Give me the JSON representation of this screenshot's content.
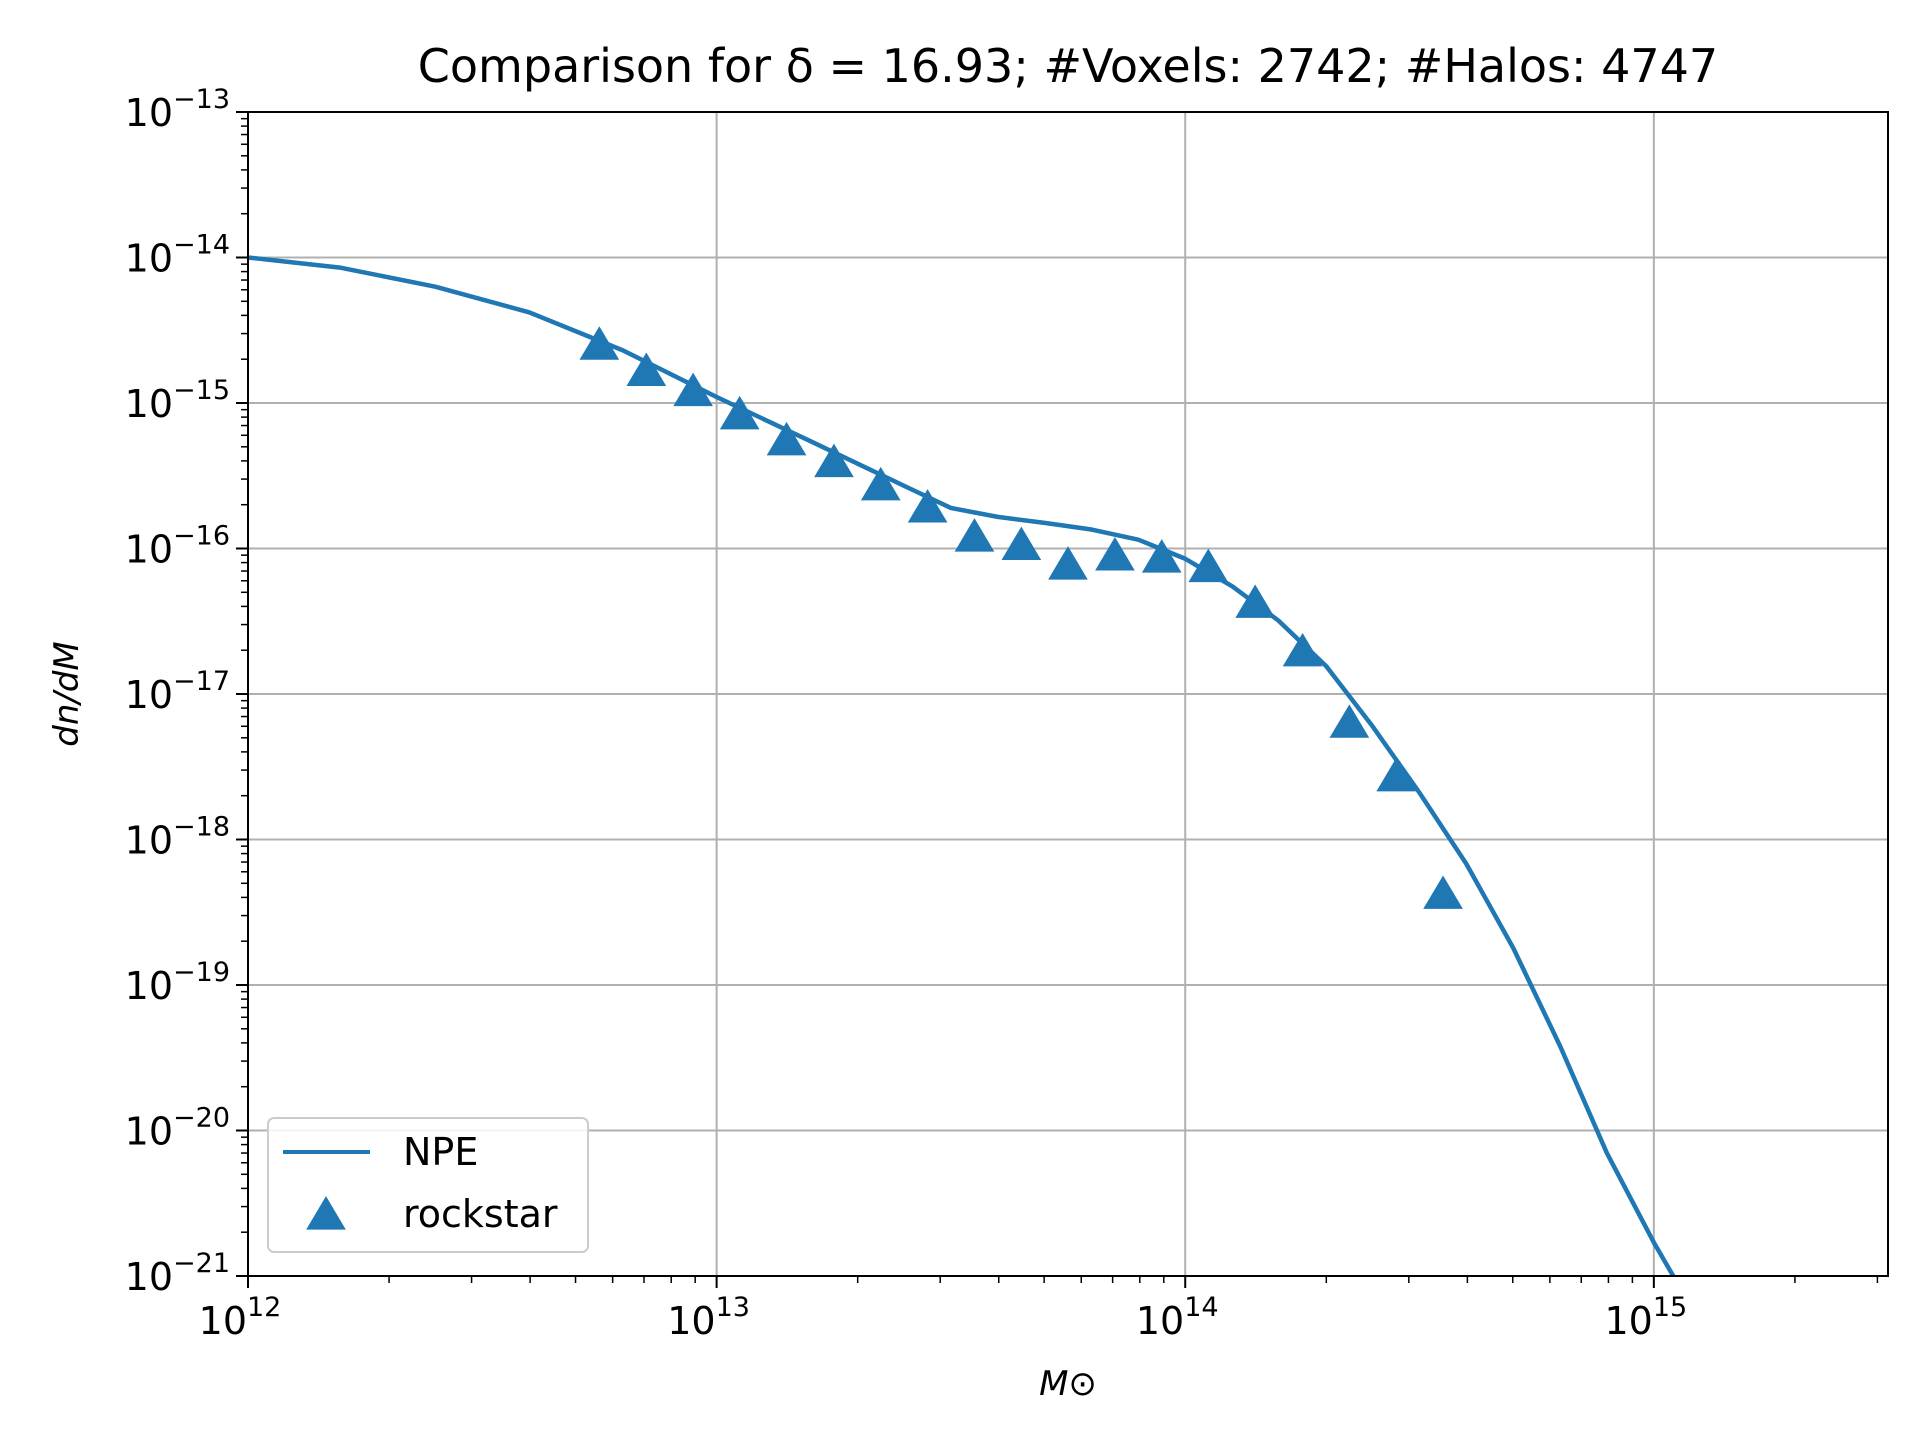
{
  "chart_data": {
    "type": "line",
    "title": "Comparison for δ = 16.93; #Voxels: 2742; #Halos: 4747",
    "xlabel": "M⊙",
    "ylabel": "dn/dM",
    "xscale": "log",
    "yscale": "log",
    "xlim": [
      1000000000000.0,
      3160000000000000.0
    ],
    "ylim": [
      1e-21,
      1e-13
    ],
    "grid": true,
    "legend_position": "lower-left",
    "x_ticks": [
      {
        "base": "10",
        "exp": "12",
        "value": 1000000000000.0
      },
      {
        "base": "10",
        "exp": "13",
        "value": 10000000000000.0
      },
      {
        "base": "10",
        "exp": "14",
        "value": 100000000000000.0
      },
      {
        "base": "10",
        "exp": "15",
        "value": 1000000000000000.0
      }
    ],
    "y_ticks": [
      {
        "base": "10",
        "exp": "−13",
        "value": 1e-13
      },
      {
        "base": "10",
        "exp": "−14",
        "value": 1e-14
      },
      {
        "base": "10",
        "exp": "−15",
        "value": 1e-15
      },
      {
        "base": "10",
        "exp": "−16",
        "value": 1e-16
      },
      {
        "base": "10",
        "exp": "−17",
        "value": 1e-17
      },
      {
        "base": "10",
        "exp": "−18",
        "value": 1e-18
      },
      {
        "base": "10",
        "exp": "−19",
        "value": 1e-19
      },
      {
        "base": "10",
        "exp": "−20",
        "value": 1e-20
      },
      {
        "base": "10",
        "exp": "−21",
        "value": 1e-21
      }
    ],
    "series": [
      {
        "name": "NPE",
        "kind": "line",
        "color": "#1f77b4",
        "points": [
          [
            1000000000000.0,
            1e-14
          ],
          [
            1580000000000.0,
            8.5e-15
          ],
          [
            2510000000000.0,
            6.3e-15
          ],
          [
            3980000000000.0,
            4.2e-15
          ],
          [
            6310000000000.0,
            2.3e-15
          ],
          [
            10000000000000.0,
            1.1e-15
          ],
          [
            15800000000000.0,
            5.5e-16
          ],
          [
            25100000000000.0,
            2.7e-16
          ],
          [
            31600000000000.0,
            1.9e-16
          ],
          [
            39800000000000.0,
            1.65e-16
          ],
          [
            50100000000000.0,
            1.5e-16
          ],
          [
            63100000000000.0,
            1.35e-16
          ],
          [
            79400000000000.0,
            1.15e-16
          ],
          [
            100000000000000.0,
            8.5e-17
          ],
          [
            126000000000000.0,
            5.5e-17
          ],
          [
            158000000000000.0,
            3.2e-17
          ],
          [
            200000000000000.0,
            1.55e-17
          ],
          [
            251000000000000.0,
            6e-18
          ],
          [
            316000000000000.0,
            2.1e-18
          ],
          [
            398000000000000.0,
            6.8e-19
          ],
          [
            501000000000000.0,
            1.8e-19
          ],
          [
            631000000000000.0,
            3.8e-20
          ],
          [
            794000000000000.0,
            7e-21
          ],
          [
            1000000000000000.0,
            1.7e-21
          ],
          [
            1100000000000000.0,
            1e-21
          ]
        ]
      },
      {
        "name": "rockstar",
        "kind": "scatter",
        "marker": "triangle",
        "color": "#1f77b4",
        "points": [
          [
            5620000000000.0,
            2.5e-15
          ],
          [
            7080000000000.0,
            1.65e-15
          ],
          [
            8910000000000.0,
            1.2e-15
          ],
          [
            11200000000000.0,
            8.3e-16
          ],
          [
            14100000000000.0,
            5.5e-16
          ],
          [
            17800000000000.0,
            3.9e-16
          ],
          [
            22400000000000.0,
            2.7e-16
          ],
          [
            28200000000000.0,
            1.9e-16
          ],
          [
            35500000000000.0,
            1.2e-16
          ],
          [
            44700000000000.0,
            1.05e-16
          ],
          [
            56200000000000.0,
            7.7e-17
          ],
          [
            70800000000000.0,
            8.9e-17
          ],
          [
            89100000000000.0,
            8.6e-17
          ],
          [
            112000000000000.0,
            7.4e-17
          ],
          [
            141000000000000.0,
            4.2e-17
          ],
          [
            178000000000000.0,
            1.95e-17
          ],
          [
            224000000000000.0,
            6.3e-18
          ],
          [
            282000000000000.0,
            2.7e-18
          ],
          [
            355000000000000.0,
            4.2e-19
          ]
        ]
      }
    ]
  }
}
